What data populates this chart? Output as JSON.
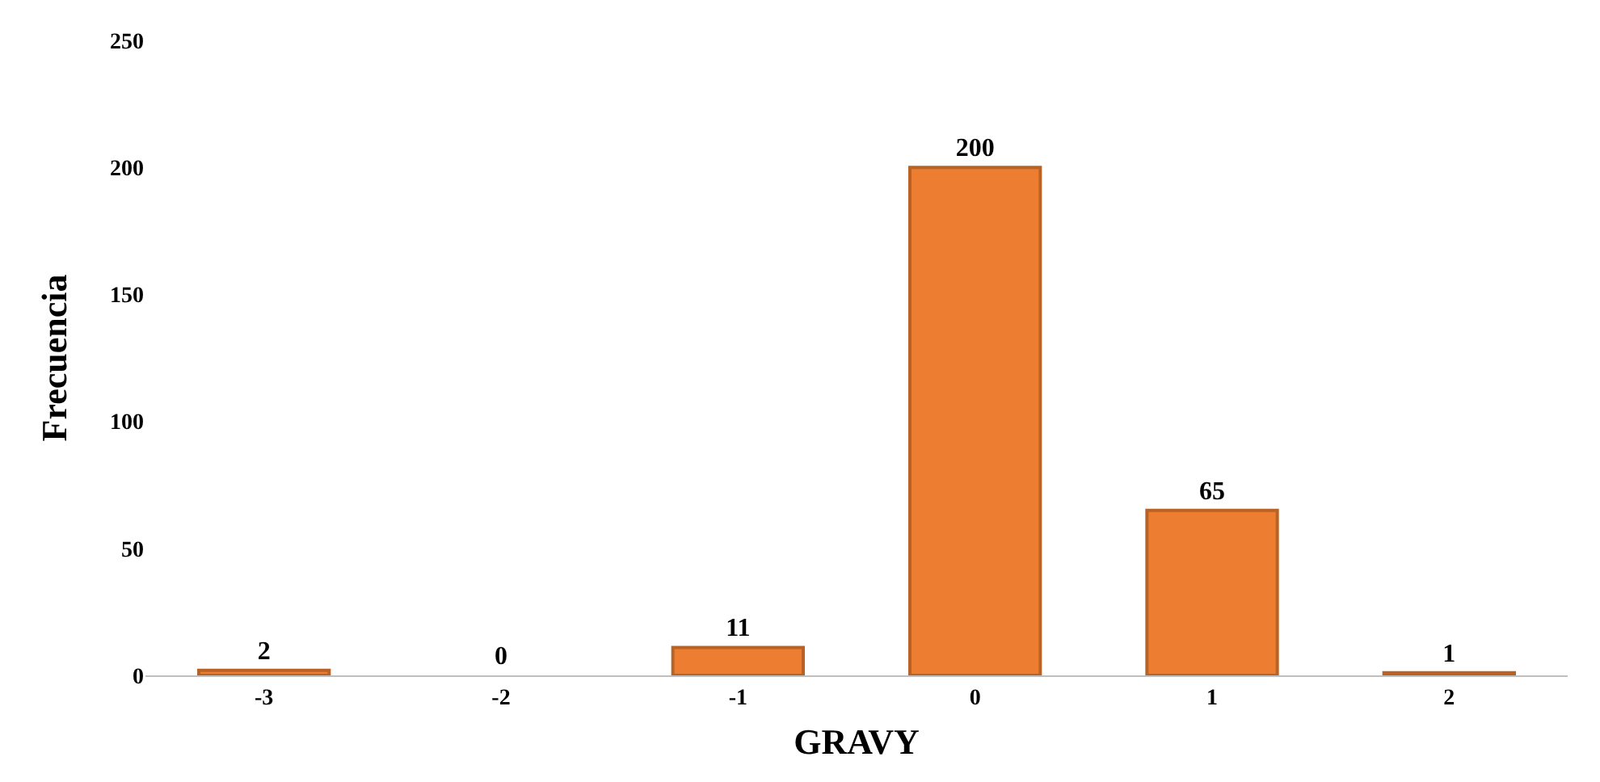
{
  "chart_data": {
    "type": "bar",
    "xlabel": "GRAVY",
    "ylabel": "Frecuencia",
    "categories": [
      "-3",
      "-2",
      "-1",
      "0",
      "1",
      "2"
    ],
    "values": [
      2,
      0,
      11,
      200,
      65,
      1
    ],
    "color": "#ed7d31",
    "ylim": [
      0,
      250
    ],
    "yticks": [
      0,
      50,
      100,
      150,
      200,
      250
    ],
    "data_labels": true,
    "grid": false,
    "legend": false
  }
}
